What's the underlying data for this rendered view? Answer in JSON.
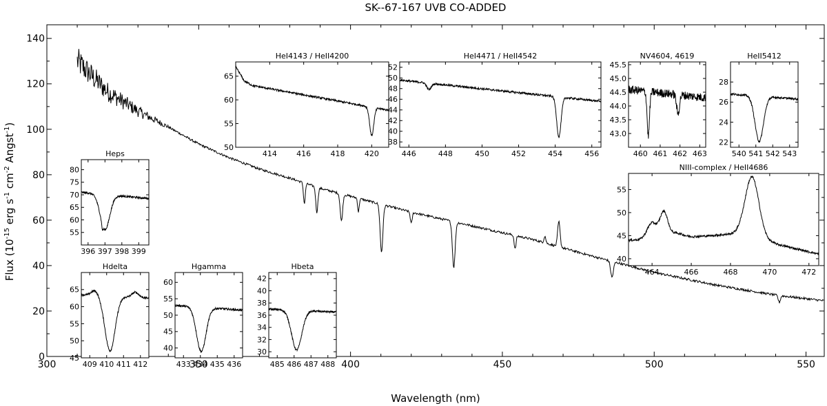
{
  "figure": {
    "title": "SK--67-167 UVB CO-ADDED",
    "xlabel": "Wavelength (nm)",
    "ylabel_parts": [
      "Flux (10",
      "-15",
      " erg s",
      "-1",
      " cm",
      "-2",
      " Angst",
      "-1",
      ")"
    ]
  },
  "chart_data": [
    {
      "type": "line",
      "title": "SK--67-167 UVB CO-ADDED",
      "xlabel": "Wavelength (nm)",
      "ylabel": "Flux (10^-15 erg s^-1 cm^-2 Angst^-1)",
      "xlim": [
        300,
        556
      ],
      "ylim": [
        0,
        146
      ],
      "xticks": [
        300,
        350,
        400,
        450,
        500,
        550
      ],
      "yticks": [
        0,
        20,
        40,
        60,
        80,
        100,
        120,
        140
      ],
      "continuum": {
        "x": [
          310,
          320,
          330,
          340,
          350,
          360,
          370,
          380,
          390,
          400,
          420,
          440,
          460,
          480,
          500,
          520,
          540,
          556
        ],
        "y": [
          130,
          116.5,
          108,
          101,
          93.5,
          87.5,
          82.5,
          78.5,
          74,
          70.5,
          63.5,
          57.5,
          51.5,
          44,
          37,
          31.5,
          27,
          24.5
        ]
      },
      "lines": [
        {
          "x": 384.8,
          "depth": -9,
          "width": 0.3
        },
        {
          "x": 388.9,
          "depth": -11,
          "width": 0.35
        },
        {
          "x": 397.0,
          "depth": -12,
          "width": 0.4
        },
        {
          "x": 402.6,
          "depth": -6,
          "width": 0.25
        },
        {
          "x": 410.2,
          "depth": -21,
          "width": 0.45
        },
        {
          "x": 420.0,
          "depth": -5,
          "width": 0.3
        },
        {
          "x": 434.0,
          "depth": -20,
          "width": 0.45
        },
        {
          "x": 454.2,
          "depth": -6,
          "width": 0.3
        },
        {
          "x": 464.0,
          "depth": 3,
          "width": 0.3
        },
        {
          "x": 468.6,
          "depth": 11,
          "width": 0.4
        },
        {
          "x": 486.1,
          "depth": -7,
          "width": 0.45
        },
        {
          "x": 541.2,
          "depth": -3,
          "width": 0.35
        }
      ]
    },
    {
      "type": "line",
      "title": "Heps",
      "xlim": [
        395.6,
        399.6
      ],
      "ylim": [
        50,
        84
      ],
      "xticks": [
        396,
        397,
        398,
        399
      ],
      "yticks": [
        55,
        60,
        65,
        70,
        75,
        80
      ],
      "continuum": {
        "x": [
          395.6,
          399.6
        ],
        "y": [
          71,
          68.5
        ]
      },
      "lines": [
        {
          "x": 397.0,
          "depth": -14,
          "width": 0.28
        },
        {
          "x": 396.85,
          "depth": -2,
          "width": 0.04
        }
      ]
    },
    {
      "type": "line",
      "title": "Hdelta",
      "xlim": [
        408.5,
        412.5
      ],
      "ylim": [
        45,
        70
      ],
      "xticks": [
        409,
        410,
        411,
        412
      ],
      "yticks": [
        45,
        50,
        55,
        60,
        65
      ],
      "continuum": {
        "x": [
          408.5,
          412.5
        ],
        "y": [
          63.5,
          62.5
        ]
      },
      "lines": [
        {
          "x": 410.2,
          "depth": -16,
          "width": 0.3
        },
        {
          "x": 409.3,
          "depth": 1.5,
          "width": 0.2
        },
        {
          "x": 411.7,
          "depth": 1.5,
          "width": 0.2
        }
      ]
    },
    {
      "type": "line",
      "title": "Hgamma",
      "xlim": [
        432.5,
        436.5
      ],
      "ylim": [
        37,
        63
      ],
      "xticks": [
        433,
        434,
        435,
        436
      ],
      "yticks": [
        40,
        45,
        50,
        55,
        60
      ],
      "continuum": {
        "x": [
          432.5,
          436.5
        ],
        "y": [
          53,
          51.5
        ]
      },
      "lines": [
        {
          "x": 434.05,
          "depth": -13.5,
          "width": 0.28
        }
      ]
    },
    {
      "type": "line",
      "title": "Hbeta",
      "xlim": [
        484.5,
        488.5
      ],
      "ylim": [
        29,
        43
      ],
      "xticks": [
        485,
        486,
        487,
        488
      ],
      "yticks": [
        30,
        32,
        34,
        36,
        38,
        40,
        42
      ],
      "continuum": {
        "x": [
          484.5,
          488.5
        ],
        "y": [
          37,
          36.5
        ]
      },
      "lines": [
        {
          "x": 486.15,
          "depth": -6.5,
          "width": 0.3
        }
      ]
    },
    {
      "type": "line",
      "title": "HeI4143 / HeII4200",
      "xlim": [
        412.0,
        421.0
      ],
      "ylim": [
        50,
        68
      ],
      "xticks": [
        414,
        416,
        418,
        420
      ],
      "yticks": [
        50,
        55,
        60,
        65
      ],
      "continuum": {
        "x": [
          412.0,
          412.5,
          413,
          421
        ],
        "y": [
          67,
          64,
          63,
          57.8
        ]
      },
      "lines": [
        {
          "x": 420.0,
          "depth": -6,
          "width": 0.12
        }
      ]
    },
    {
      "type": "line",
      "title": "HeI4471 / HeII4542",
      "xlim": [
        445.5,
        456.5
      ],
      "ylim": [
        37,
        53
      ],
      "xticks": [
        446,
        448,
        450,
        452,
        454,
        456
      ],
      "yticks": [
        38,
        40,
        42,
        44,
        46,
        48,
        50,
        52
      ],
      "continuum": {
        "x": [
          445.5,
          456.5
        ],
        "y": [
          49.6,
          45.6
        ]
      },
      "lines": [
        {
          "x": 447.1,
          "depth": -1.2,
          "width": 0.12
        },
        {
          "x": 454.2,
          "depth": -7.5,
          "width": 0.12
        }
      ]
    },
    {
      "type": "line",
      "title": "NV4604, 4619",
      "xlim": [
        459.4,
        463.3
      ],
      "ylim": [
        42.5,
        45.6
      ],
      "xticks": [
        460,
        461,
        462,
        463
      ],
      "yticks": [
        43.0,
        43.5,
        44.0,
        44.5,
        45.0,
        45.5
      ],
      "continuum": {
        "x": [
          459.4,
          463.3
        ],
        "y": [
          44.6,
          44.3
        ]
      },
      "lines": [
        {
          "x": 460.4,
          "depth": -1.6,
          "width": 0.06
        },
        {
          "x": 461.9,
          "depth": -0.7,
          "width": 0.07
        }
      ]
    },
    {
      "type": "line",
      "title": "HeII5412",
      "xlim": [
        539.5,
        543.5
      ],
      "ylim": [
        21.5,
        30
      ],
      "xticks": [
        540,
        541,
        542,
        543
      ],
      "yticks": [
        22,
        24,
        26,
        28
      ],
      "continuum": {
        "x": [
          539.5,
          543.5
        ],
        "y": [
          26.8,
          26.3
        ]
      },
      "lines": [
        {
          "x": 541.2,
          "depth": -4.5,
          "width": 0.25
        }
      ]
    },
    {
      "type": "line",
      "title": "NIII-complex / HeII4686",
      "xlim": [
        462.8,
        472.5
      ],
      "ylim": [
        38.5,
        58.5
      ],
      "xticks": [
        464,
        466,
        468,
        470,
        472
      ],
      "yticks": [
        40,
        45,
        50,
        55
      ],
      "continuum": {
        "x": [
          462.8,
          465,
          467,
          468.5,
          470.5,
          472.5
        ],
        "y": [
          44,
          44.5,
          45,
          45.5,
          43,
          41
        ]
      },
      "lines": [
        {
          "x": 464.0,
          "depth": 3.5,
          "width": 0.25
        },
        {
          "x": 464.6,
          "depth": 5.5,
          "width": 0.2
        },
        {
          "x": 465.2,
          "depth": 1,
          "width": 0.35
        },
        {
          "x": 469.1,
          "depth": 13,
          "width": 0.35
        }
      ]
    }
  ]
}
